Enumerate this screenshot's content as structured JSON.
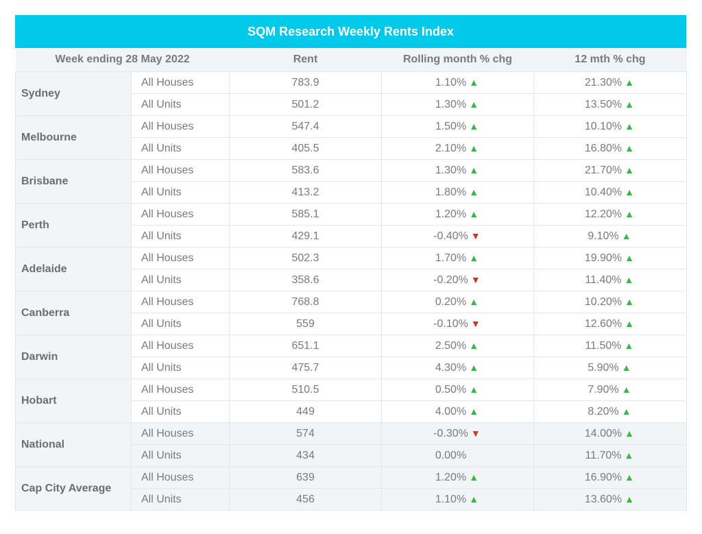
{
  "title": "SQM Research Weekly Rents Index",
  "headers": [
    "Week ending 28 May 2022",
    "Rent",
    "Rolling month % chg",
    "12 mth % chg"
  ],
  "colors": {
    "header_bar": "#00c9ea",
    "up": "#3db54a",
    "down": "#d7321f"
  },
  "cities": [
    {
      "name": "Sydney",
      "shaded": false,
      "rows": [
        {
          "type": "All Houses",
          "rent": "783.9",
          "month": "1.10%",
          "month_dir": "up",
          "year": "21.30%",
          "year_dir": "up"
        },
        {
          "type": "All Units",
          "rent": "501.2",
          "month": "1.30%",
          "month_dir": "up",
          "year": "13.50%",
          "year_dir": "up"
        }
      ]
    },
    {
      "name": "Melbourne",
      "shaded": false,
      "rows": [
        {
          "type": "All Houses",
          "rent": "547.4",
          "month": "1.50%",
          "month_dir": "up",
          "year": "10.10%",
          "year_dir": "up"
        },
        {
          "type": "All Units",
          "rent": "405.5",
          "month": "2.10%",
          "month_dir": "up",
          "year": "16.80%",
          "year_dir": "up"
        }
      ]
    },
    {
      "name": "Brisbane",
      "shaded": false,
      "rows": [
        {
          "type": "All Houses",
          "rent": "583.6",
          "month": "1.30%",
          "month_dir": "up",
          "year": "21.70%",
          "year_dir": "up"
        },
        {
          "type": "All Units",
          "rent": "413.2",
          "month": "1.80%",
          "month_dir": "up",
          "year": "10.40%",
          "year_dir": "up"
        }
      ]
    },
    {
      "name": "Perth",
      "shaded": false,
      "rows": [
        {
          "type": "All Houses",
          "rent": "585.1",
          "month": "1.20%",
          "month_dir": "up",
          "year": "12.20%",
          "year_dir": "up"
        },
        {
          "type": "All Units",
          "rent": "429.1",
          "month": "-0.40%",
          "month_dir": "down",
          "year": "9.10%",
          "year_dir": "up"
        }
      ]
    },
    {
      "name": "Adelaide",
      "shaded": false,
      "rows": [
        {
          "type": "All Houses",
          "rent": "502.3",
          "month": "1.70%",
          "month_dir": "up",
          "year": "19.90%",
          "year_dir": "up"
        },
        {
          "type": "All Units",
          "rent": "358.6",
          "month": "-0.20%",
          "month_dir": "down",
          "year": "11.40%",
          "year_dir": "up"
        }
      ]
    },
    {
      "name": "Canberra",
      "shaded": false,
      "rows": [
        {
          "type": "All Houses",
          "rent": "768.8",
          "month": "0.20%",
          "month_dir": "up",
          "year": "10.20%",
          "year_dir": "up"
        },
        {
          "type": "All Units",
          "rent": "559",
          "month": "-0.10%",
          "month_dir": "down",
          "year": "12.60%",
          "year_dir": "up"
        }
      ]
    },
    {
      "name": "Darwin",
      "shaded": false,
      "rows": [
        {
          "type": "All Houses",
          "rent": "651.1",
          "month": "2.50%",
          "month_dir": "up",
          "year": "11.50%",
          "year_dir": "up"
        },
        {
          "type": "All Units",
          "rent": "475.7",
          "month": "4.30%",
          "month_dir": "up",
          "year": "5.90%",
          "year_dir": "up"
        }
      ]
    },
    {
      "name": "Hobart",
      "shaded": false,
      "rows": [
        {
          "type": "All Houses",
          "rent": "510.5",
          "month": "0.50%",
          "month_dir": "up",
          "year": "7.90%",
          "year_dir": "up"
        },
        {
          "type": "All Units",
          "rent": "449",
          "month": "4.00%",
          "month_dir": "up",
          "year": "8.20%",
          "year_dir": "up"
        }
      ]
    },
    {
      "name": "National",
      "shaded": true,
      "rows": [
        {
          "type": "All Houses",
          "rent": "574",
          "month": "-0.30%",
          "month_dir": "down",
          "year": "14.00%",
          "year_dir": "up"
        },
        {
          "type": "All Units",
          "rent": "434",
          "month": "0.00%",
          "month_dir": "none",
          "year": "11.70%",
          "year_dir": "up"
        }
      ]
    },
    {
      "name": "Cap City Average",
      "shaded": true,
      "rows": [
        {
          "type": "All Houses",
          "rent": "639",
          "month": "1.20%",
          "month_dir": "up",
          "year": "16.90%",
          "year_dir": "up"
        },
        {
          "type": "All Units",
          "rent": "456",
          "month": "1.10%",
          "month_dir": "up",
          "year": "13.60%",
          "year_dir": "up"
        }
      ]
    }
  ]
}
